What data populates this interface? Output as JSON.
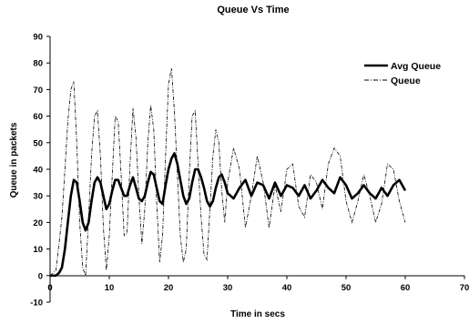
{
  "chart_data": {
    "type": "line",
    "title": "Queue Vs Time",
    "xlabel": "Time in secs",
    "ylabel": "Queue in packets",
    "xlim": [
      0,
      70
    ],
    "ylim": [
      -10,
      90
    ],
    "xticks": [
      0,
      10,
      20,
      30,
      40,
      50,
      60,
      70
    ],
    "yticks": [
      -10,
      0,
      10,
      20,
      30,
      40,
      50,
      60,
      70,
      80,
      90
    ],
    "grid": false,
    "legend_position": "top-right",
    "series": [
      {
        "name": "Avg Queue",
        "style": "solid-thick",
        "color": "#000000",
        "x": [
          0,
          1,
          1.5,
          2,
          2.5,
          3,
          3.5,
          4,
          4.5,
          5,
          5.5,
          6,
          6.5,
          7,
          7.5,
          8,
          8.5,
          9,
          9.5,
          10,
          10.5,
          11,
          11.5,
          12,
          12.5,
          13,
          13.5,
          14,
          14.5,
          15,
          15.5,
          16,
          16.5,
          17,
          17.5,
          18,
          18.5,
          19,
          19.5,
          20,
          20.5,
          21,
          21.5,
          22,
          22.5,
          23,
          23.5,
          24,
          24.5,
          25,
          25.5,
          26,
          26.5,
          27,
          27.5,
          28,
          28.5,
          29,
          29.5,
          30,
          31,
          32,
          33,
          34,
          35,
          36,
          37,
          38,
          39,
          40,
          41,
          42,
          43,
          44,
          45,
          46,
          47,
          48,
          49,
          50,
          51,
          52,
          53,
          54,
          55,
          56,
          57,
          58,
          59,
          60
        ],
        "values": [
          0,
          0,
          1,
          3,
          10,
          20,
          30,
          36,
          35,
          28,
          20,
          17,
          20,
          28,
          35,
          37,
          35,
          30,
          25,
          27,
          32,
          36,
          36,
          33,
          30,
          30,
          34,
          37,
          33,
          29,
          28,
          30,
          35,
          39,
          38,
          33,
          28,
          27,
          34,
          40,
          44,
          46,
          42,
          36,
          30,
          27,
          29,
          35,
          40,
          40,
          37,
          33,
          28,
          26,
          28,
          33,
          37,
          38,
          35,
          31,
          29,
          33,
          36,
          30,
          35,
          34,
          29,
          35,
          30,
          34,
          33,
          30,
          34,
          29,
          32,
          36,
          33,
          31,
          37,
          34,
          29,
          31,
          34,
          31,
          29,
          33,
          30,
          34,
          36,
          32
        ],
        "note": ""
      },
      {
        "name": "Queue",
        "style": "dash-dot-thin",
        "color": "#000000",
        "x": [
          0,
          1,
          1.5,
          2,
          2.5,
          3,
          3.5,
          4,
          4.5,
          5,
          5.5,
          6,
          6.5,
          7,
          7.5,
          8,
          8.5,
          9,
          9.5,
          10,
          10.5,
          11,
          11.5,
          12,
          12.5,
          13,
          13.5,
          14,
          14.5,
          15,
          15.5,
          16,
          16.5,
          17,
          17.5,
          18,
          18.5,
          19,
          19.5,
          20,
          20.5,
          21,
          21.5,
          22,
          22.5,
          23,
          23.5,
          24,
          24.5,
          25,
          25.5,
          26,
          26.5,
          27,
          27.5,
          28,
          28.5,
          29,
          29.5,
          30,
          31,
          32,
          33,
          34,
          35,
          36,
          37,
          38,
          39,
          40,
          41,
          42,
          43,
          44,
          45,
          46,
          47,
          48,
          49,
          50,
          51,
          52,
          53,
          54,
          55,
          56,
          57,
          58,
          59,
          60
        ],
        "values": [
          0,
          2,
          12,
          22,
          40,
          58,
          70,
          73,
          50,
          20,
          3,
          0,
          22,
          45,
          60,
          62,
          45,
          18,
          2,
          15,
          38,
          60,
          58,
          38,
          15,
          16,
          42,
          63,
          52,
          30,
          12,
          25,
          50,
          64,
          55,
          28,
          5,
          15,
          45,
          72,
          78,
          62,
          38,
          15,
          5,
          10,
          38,
          60,
          62,
          42,
          22,
          8,
          6,
          25,
          45,
          55,
          50,
          32,
          20,
          35,
          48,
          40,
          18,
          30,
          45,
          35,
          18,
          34,
          24,
          40,
          42,
          26,
          22,
          38,
          35,
          25,
          42,
          48,
          45,
          28,
          20,
          28,
          38,
          30,
          20,
          27,
          42,
          40,
          28,
          20
        ]
      }
    ]
  }
}
